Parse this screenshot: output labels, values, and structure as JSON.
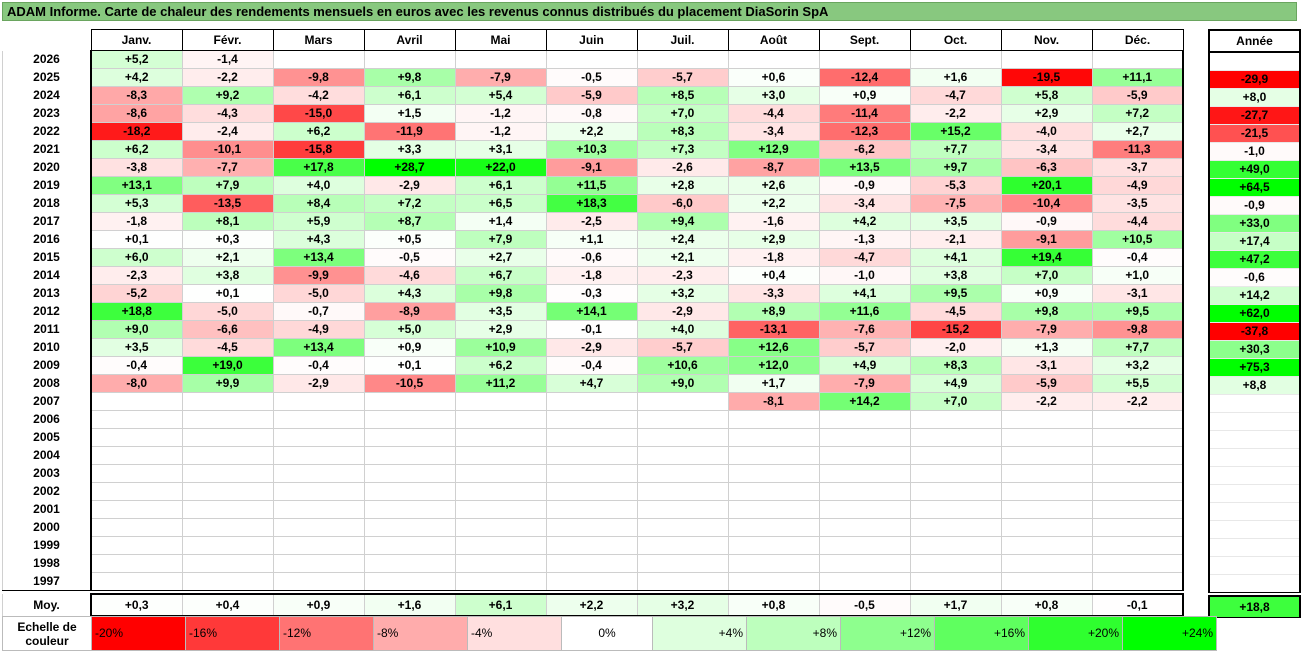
{
  "title": "ADAM Informe. Carte de chaleur des rendements mensuels en euros avec les revenus connus distribués du placement DiaSorin SpA",
  "chart_data": {
    "type": "heatmap",
    "months": [
      "Janv.",
      "Févr.",
      "Mars",
      "Avril",
      "Mai",
      "Juin",
      "Juil.",
      "Août",
      "Sept.",
      "Oct.",
      "Nov.",
      "Déc."
    ],
    "year_header": "Année",
    "rows": [
      {
        "year": "2026",
        "values": [
          "+5,2",
          "-1,4",
          "",
          "",
          "",
          "",
          "",
          "",
          "",
          "",
          "",
          ""
        ],
        "total": ""
      },
      {
        "year": "2025",
        "values": [
          "+4,2",
          "-2,2",
          "-9,8",
          "+9,8",
          "-7,9",
          "-0,5",
          "-5,7",
          "+0,6",
          "-12,4",
          "+1,6",
          "-19,5",
          "+11,1"
        ],
        "total": "-29,9"
      },
      {
        "year": "2024",
        "values": [
          "-8,3",
          "+9,2",
          "-4,2",
          "+6,1",
          "+5,4",
          "-5,9",
          "+8,5",
          "+3,0",
          "+0,9",
          "-4,7",
          "+5,8",
          "-5,9"
        ],
        "total": "+8,0"
      },
      {
        "year": "2023",
        "values": [
          "-8,6",
          "-4,3",
          "-15,0",
          "+1,5",
          "-1,2",
          "-0,8",
          "+7,0",
          "-4,4",
          "-11,4",
          "-2,2",
          "+2,9",
          "+7,2"
        ],
        "total": "-27,7"
      },
      {
        "year": "2022",
        "values": [
          "-18,2",
          "-2,4",
          "+6,2",
          "-11,9",
          "-1,2",
          "+2,2",
          "+8,3",
          "-3,4",
          "-12,3",
          "+15,2",
          "-4,0",
          "+2,7"
        ],
        "total": "-21,5"
      },
      {
        "year": "2021",
        "values": [
          "+6,2",
          "-10,1",
          "-15,8",
          "+3,3",
          "+3,1",
          "+10,3",
          "+7,3",
          "+12,9",
          "-6,2",
          "+7,7",
          "-3,4",
          "-11,3"
        ],
        "total": "-1,0"
      },
      {
        "year": "2020",
        "values": [
          "-3,8",
          "-7,7",
          "+17,8",
          "+28,7",
          "+22,0",
          "-9,1",
          "-2,6",
          "-8,7",
          "+13,5",
          "+9,7",
          "-6,3",
          "-3,7"
        ],
        "total": "+49,0"
      },
      {
        "year": "2019",
        "values": [
          "+13,1",
          "+7,9",
          "+4,0",
          "-2,9",
          "+6,1",
          "+11,5",
          "+2,8",
          "+2,6",
          "-0,9",
          "-5,3",
          "+20,1",
          "-4,9"
        ],
        "total": "+64,5"
      },
      {
        "year": "2018",
        "values": [
          "+5,3",
          "-13,5",
          "+8,4",
          "+7,2",
          "+6,5",
          "+18,3",
          "-6,0",
          "+2,2",
          "-3,4",
          "-7,5",
          "-10,4",
          "-3,5"
        ],
        "total": "-0,9"
      },
      {
        "year": "2017",
        "values": [
          "-1,8",
          "+8,1",
          "+5,9",
          "+8,7",
          "+1,4",
          "-2,5",
          "+9,4",
          "-1,6",
          "+4,2",
          "+3,5",
          "-0,9",
          "-4,4"
        ],
        "total": "+33,0"
      },
      {
        "year": "2016",
        "values": [
          "+0,1",
          "+0,3",
          "+4,3",
          "+0,5",
          "+7,9",
          "+1,1",
          "+2,4",
          "+2,9",
          "-1,3",
          "-2,1",
          "-9,1",
          "+10,5"
        ],
        "total": "+17,4"
      },
      {
        "year": "2015",
        "values": [
          "+6,0",
          "+2,1",
          "+13,4",
          "-0,5",
          "+2,7",
          "-0,6",
          "+2,1",
          "-1,8",
          "-4,7",
          "+4,1",
          "+19,4",
          "-0,4"
        ],
        "total": "+47,2"
      },
      {
        "year": "2014",
        "values": [
          "-2,3",
          "+3,8",
          "-9,9",
          "-4,6",
          "+6,7",
          "-1,8",
          "-2,3",
          "+0,4",
          "-1,0",
          "+3,8",
          "+7,0",
          "+1,0"
        ],
        "total": "-0,6"
      },
      {
        "year": "2013",
        "values": [
          "-5,2",
          "+0,1",
          "-5,0",
          "+4,3",
          "+9,8",
          "-0,3",
          "+3,2",
          "-3,3",
          "+4,1",
          "+9,5",
          "+0,9",
          "-3,1"
        ],
        "total": "+14,2"
      },
      {
        "year": "2012",
        "values": [
          "+18,8",
          "-5,0",
          "-0,7",
          "-8,9",
          "+3,5",
          "+14,1",
          "-2,9",
          "+8,9",
          "+11,6",
          "-4,5",
          "+9,8",
          "+9,5"
        ],
        "total": "+62,0"
      },
      {
        "year": "2011",
        "values": [
          "+9,0",
          "-6,6",
          "-4,9",
          "+5,0",
          "+2,9",
          "-0,1",
          "+4,0",
          "-13,1",
          "-7,6",
          "-15,2",
          "-7,9",
          "-9,8"
        ],
        "total": "-37,8"
      },
      {
        "year": "2010",
        "values": [
          "+3,5",
          "-4,5",
          "+13,4",
          "+0,9",
          "+10,9",
          "-2,9",
          "-5,7",
          "+12,6",
          "-5,7",
          "-2,0",
          "+1,3",
          "+7,7"
        ],
        "total": "+30,3"
      },
      {
        "year": "2009",
        "values": [
          "-0,4",
          "+19,0",
          "-0,4",
          "+0,1",
          "+6,2",
          "-0,4",
          "+10,6",
          "+12,0",
          "+4,9",
          "+8,3",
          "-3,1",
          "+3,2"
        ],
        "total": "+75,3"
      },
      {
        "year": "2008",
        "values": [
          "-8,0",
          "+9,9",
          "-2,9",
          "-10,5",
          "+11,2",
          "+4,7",
          "+9,0",
          "+1,7",
          "-7,9",
          "+4,9",
          "-5,9",
          "+5,5"
        ],
        "total": "+8,8"
      },
      {
        "year": "2007",
        "values": [
          "",
          "",
          "",
          "",
          "",
          "",
          "",
          "-8,1",
          "+14,2",
          "+7,0",
          "-2,2",
          "-2,2"
        ],
        "total": ""
      },
      {
        "year": "2006",
        "values": [
          "",
          "",
          "",
          "",
          "",
          "",
          "",
          "",
          "",
          "",
          "",
          ""
        ],
        "total": ""
      },
      {
        "year": "2005",
        "values": [
          "",
          "",
          "",
          "",
          "",
          "",
          "",
          "",
          "",
          "",
          "",
          ""
        ],
        "total": ""
      },
      {
        "year": "2004",
        "values": [
          "",
          "",
          "",
          "",
          "",
          "",
          "",
          "",
          "",
          "",
          "",
          ""
        ],
        "total": ""
      },
      {
        "year": "2003",
        "values": [
          "",
          "",
          "",
          "",
          "",
          "",
          "",
          "",
          "",
          "",
          "",
          ""
        ],
        "total": ""
      },
      {
        "year": "2002",
        "values": [
          "",
          "",
          "",
          "",
          "",
          "",
          "",
          "",
          "",
          "",
          "",
          ""
        ],
        "total": ""
      },
      {
        "year": "2001",
        "values": [
          "",
          "",
          "",
          "",
          "",
          "",
          "",
          "",
          "",
          "",
          "",
          ""
        ],
        "total": ""
      },
      {
        "year": "2000",
        "values": [
          "",
          "",
          "",
          "",
          "",
          "",
          "",
          "",
          "",
          "",
          "",
          ""
        ],
        "total": ""
      },
      {
        "year": "1999",
        "values": [
          "",
          "",
          "",
          "",
          "",
          "",
          "",
          "",
          "",
          "",
          "",
          ""
        ],
        "total": ""
      },
      {
        "year": "1998",
        "values": [
          "",
          "",
          "",
          "",
          "",
          "",
          "",
          "",
          "",
          "",
          "",
          ""
        ],
        "total": ""
      },
      {
        "year": "1997",
        "values": [
          "",
          "",
          "",
          "",
          "",
          "",
          "",
          "",
          "",
          "",
          "",
          ""
        ],
        "total": ""
      }
    ],
    "average": {
      "label": "Moy.",
      "values": [
        "+0,3",
        "+0,4",
        "+0,9",
        "+1,6",
        "+6,1",
        "+2,2",
        "+3,2",
        "+0,8",
        "-0,5",
        "+1,7",
        "+0,8",
        "-0,1"
      ],
      "total": "+18,8"
    },
    "scale": {
      "label": "Echelle de couleur",
      "steps": [
        "-20%",
        "-16%",
        "-12%",
        "-8%",
        "-4%",
        "0%",
        "+4%",
        "+8%",
        "+12%",
        "+16%",
        "+20%",
        "+24%"
      ]
    },
    "colors": {
      "negative_max": "#ff0000",
      "zero": "#ffffff",
      "positive_max": "#00ff00"
    }
  }
}
